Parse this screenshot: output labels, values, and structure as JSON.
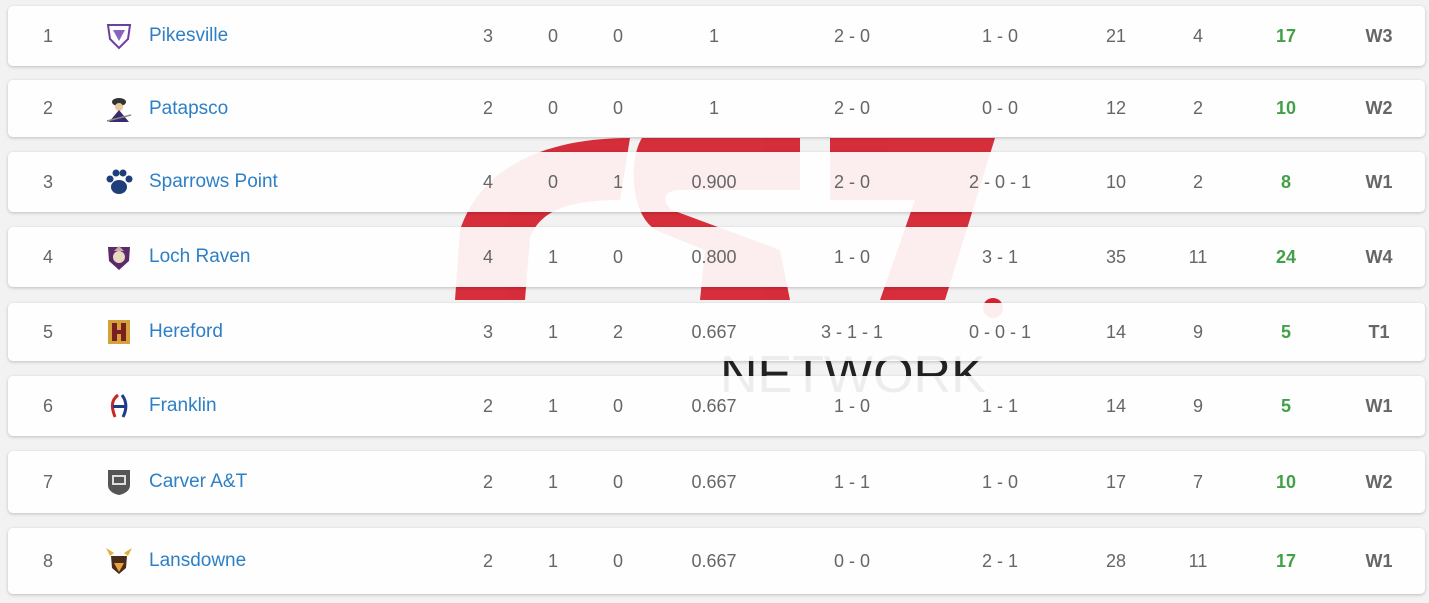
{
  "colors": {
    "team_link": "#2d7fc6",
    "positive_diff": "#43a047",
    "watermark_red": "#d42330"
  },
  "rows": [
    {
      "rank": "1",
      "team": "Pikesville",
      "logo_icon": "pikesville-logo-icon",
      "w": "3",
      "l": "0",
      "t": "0",
      "pct": "1",
      "div": "2 - 0",
      "other": "1 - 0",
      "pf": "21",
      "pa": "4",
      "diff": "17",
      "streak": "W3"
    },
    {
      "rank": "2",
      "team": "Patapsco",
      "logo_icon": "patapsco-logo-icon",
      "w": "2",
      "l": "0",
      "t": "0",
      "pct": "1",
      "div": "2 - 0",
      "other": "0 - 0",
      "pf": "12",
      "pa": "2",
      "diff": "10",
      "streak": "W2"
    },
    {
      "rank": "3",
      "team": "Sparrows Point",
      "logo_icon": "paw-print-logo-icon",
      "w": "4",
      "l": "0",
      "t": "1",
      "pct": "0.900",
      "div": "2 - 0",
      "other": "2 - 0 - 1",
      "pf": "10",
      "pa": "2",
      "diff": "8",
      "streak": "W1"
    },
    {
      "rank": "4",
      "team": "Loch Raven",
      "logo_icon": "loch-raven-logo-icon",
      "w": "4",
      "l": "1",
      "t": "0",
      "pct": "0.800",
      "div": "1 - 0",
      "other": "3 - 1",
      "pf": "35",
      "pa": "11",
      "diff": "24",
      "streak": "W4"
    },
    {
      "rank": "5",
      "team": "Hereford",
      "logo_icon": "hereford-h-logo-icon",
      "w": "3",
      "l": "1",
      "t": "2",
      "pct": "0.667",
      "div": "3 - 1 - 1",
      "other": "0 - 0 - 1",
      "pf": "14",
      "pa": "9",
      "diff": "5",
      "streak": "T1"
    },
    {
      "rank": "6",
      "team": "Franklin",
      "logo_icon": "franklin-logo-icon",
      "w": "2",
      "l": "1",
      "t": "0",
      "pct": "0.667",
      "div": "1 - 0",
      "other": "1 - 1",
      "pf": "14",
      "pa": "9",
      "diff": "5",
      "streak": "W1"
    },
    {
      "rank": "7",
      "team": "Carver A&T",
      "logo_icon": "carver-shield-logo-icon",
      "w": "2",
      "l": "1",
      "t": "0",
      "pct": "0.667",
      "div": "1 - 1",
      "other": "1 - 0",
      "pf": "17",
      "pa": "7",
      "diff": "10",
      "streak": "W2"
    },
    {
      "rank": "8",
      "team": "Lansdowne",
      "logo_icon": "viking-logo-icon",
      "w": "2",
      "l": "1",
      "t": "0",
      "pct": "0.667",
      "div": "0 - 0",
      "other": "2 - 1",
      "pf": "28",
      "pa": "11",
      "diff": "17",
      "streak": "W1"
    }
  ]
}
